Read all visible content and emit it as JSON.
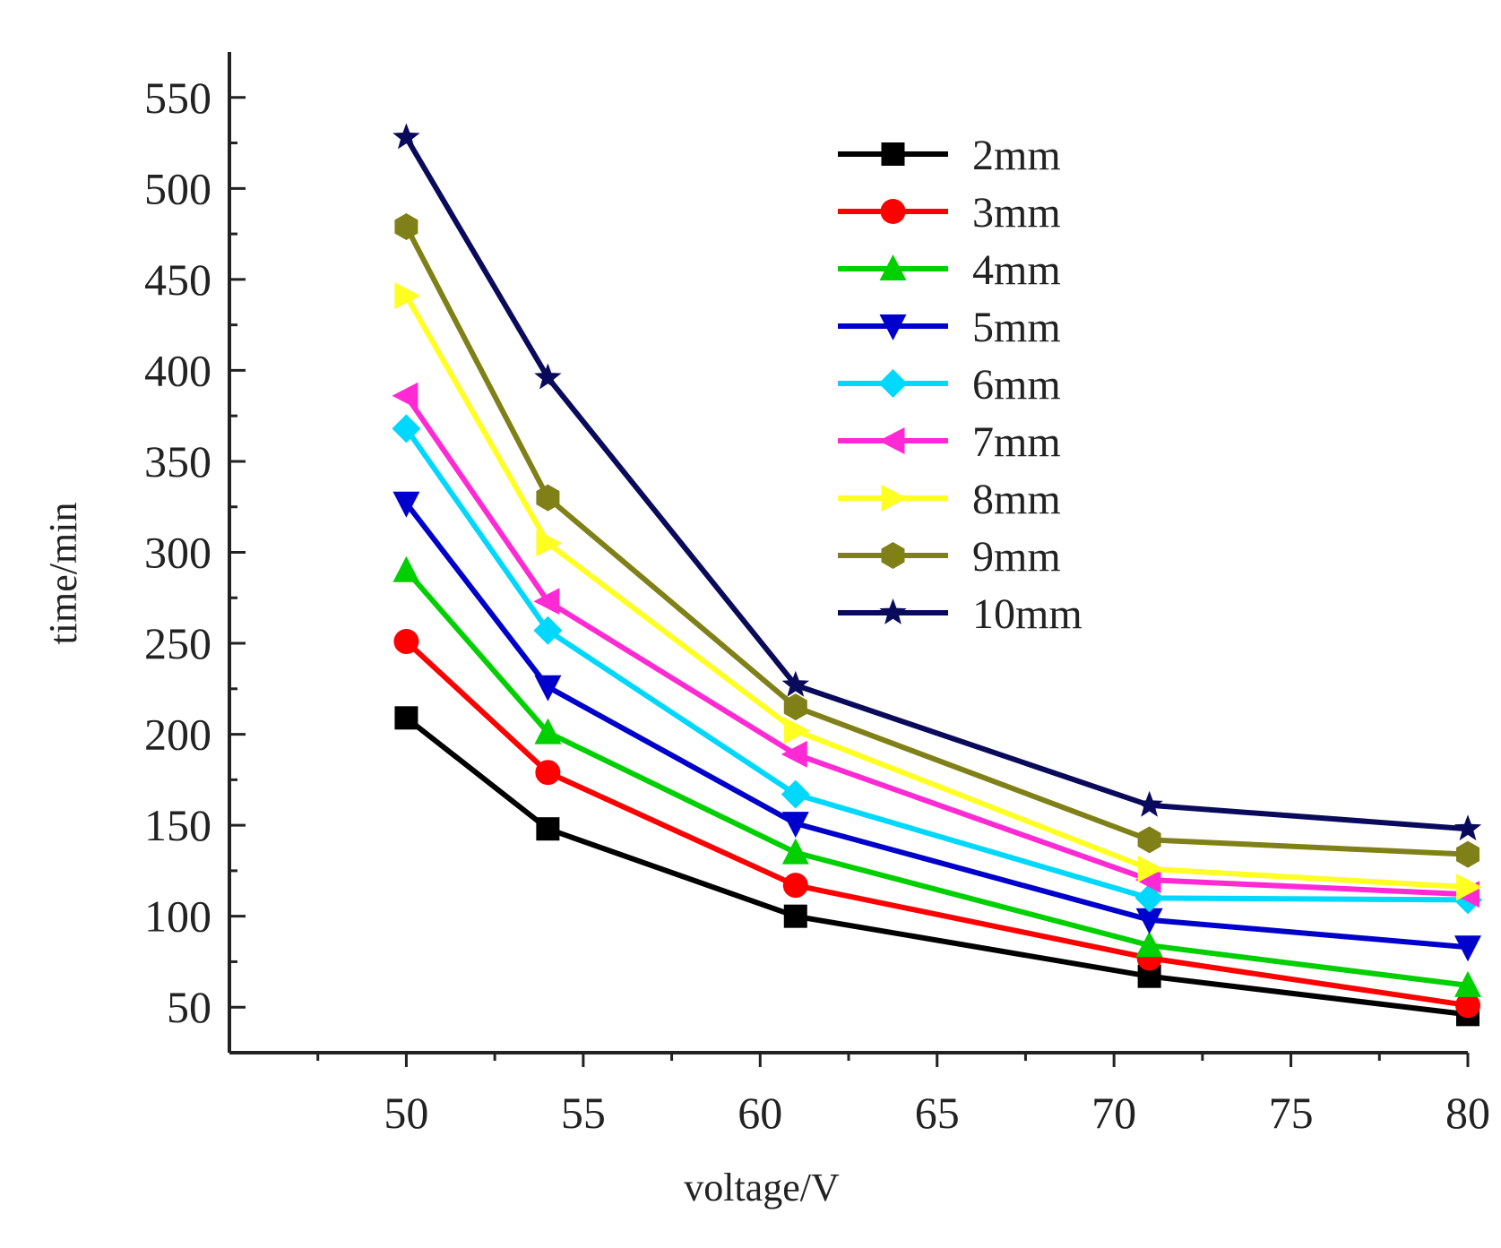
{
  "chart_data": {
    "type": "line",
    "title": "",
    "xlabel": "voltage/V",
    "ylabel": "time/min",
    "x": [
      50,
      54,
      61,
      71,
      80
    ],
    "xlim": [
      45,
      80
    ],
    "ylim": [
      25,
      575
    ],
    "xticks": [
      50,
      55,
      60,
      65,
      70,
      75,
      80
    ],
    "yticks": [
      50,
      100,
      150,
      200,
      250,
      300,
      350,
      400,
      450,
      500,
      550
    ],
    "grid": false,
    "legend_position": "top-right",
    "series": [
      {
        "name": "2mm",
        "color": "#000000",
        "marker": "square",
        "values": [
          209,
          148,
          100,
          67,
          46
        ]
      },
      {
        "name": "3mm",
        "color": "#ff0000",
        "marker": "circle",
        "values": [
          251,
          179,
          117,
          77,
          51
        ]
      },
      {
        "name": "4mm",
        "color": "#00d000",
        "marker": "triangle-up",
        "values": [
          290,
          201,
          135,
          84,
          62
        ]
      },
      {
        "name": "5mm",
        "color": "#0000cc",
        "marker": "triangle-down",
        "values": [
          327,
          226,
          151,
          98,
          83
        ]
      },
      {
        "name": "6mm",
        "color": "#00d8ff",
        "marker": "diamond",
        "values": [
          368,
          257,
          167,
          110,
          109
        ]
      },
      {
        "name": "7mm",
        "color": "#ff2ad4",
        "marker": "triangle-left",
        "values": [
          386,
          273,
          189,
          120,
          112
        ]
      },
      {
        "name": "8mm",
        "color": "#ffff22",
        "marker": "triangle-right",
        "values": [
          441,
          305,
          202,
          126,
          116
        ]
      },
      {
        "name": "9mm",
        "color": "#808018",
        "marker": "hexagon",
        "values": [
          479,
          330,
          215,
          142,
          134
        ]
      },
      {
        "name": "10mm",
        "color": "#0a0a5c",
        "marker": "star",
        "values": [
          528,
          396,
          227,
          161,
          148
        ]
      }
    ]
  }
}
